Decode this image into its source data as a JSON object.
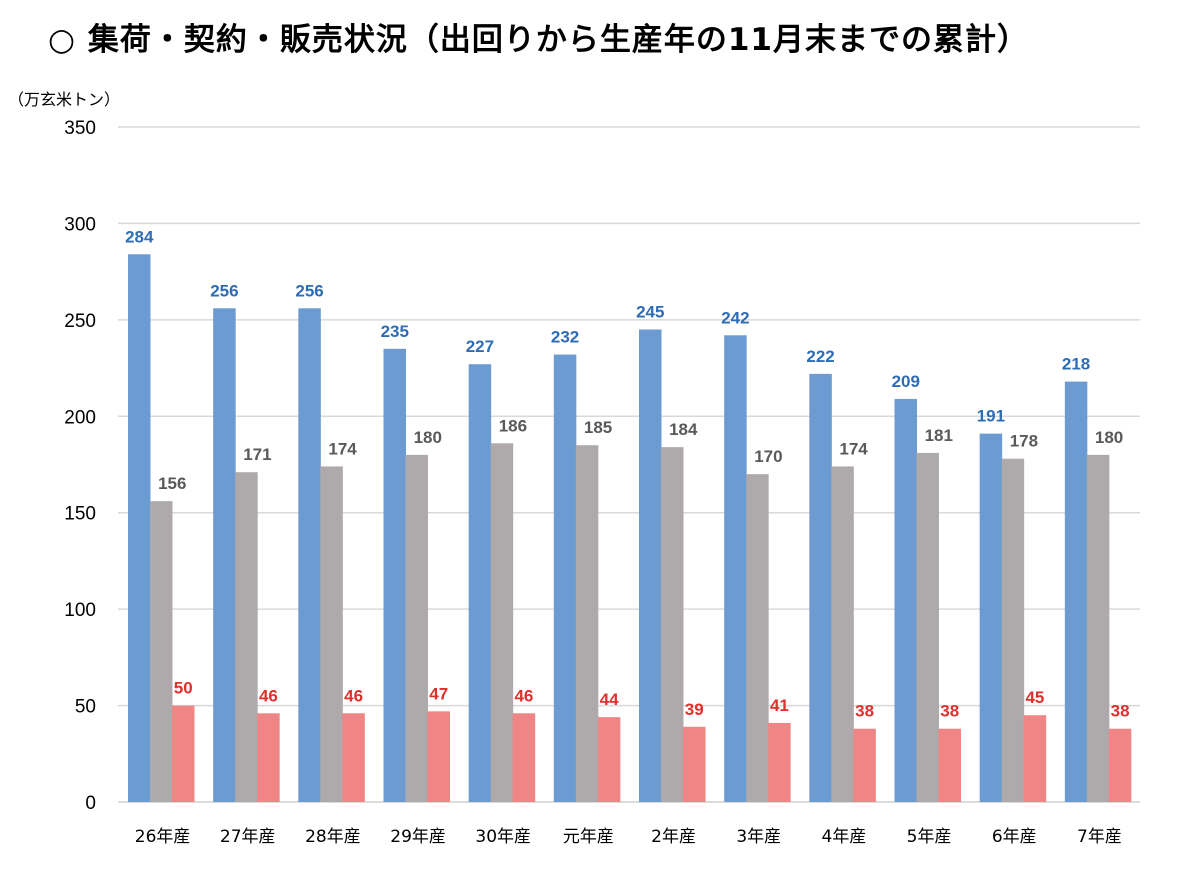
{
  "chart_data": {
    "type": "bar",
    "title": "○ 集荷・契約・販売状況（出回りから生産年の11月末までの累計）",
    "ylabel": "（万玄米トン）",
    "ylim": [
      0,
      350
    ],
    "yticks": [
      0,
      50,
      100,
      150,
      200,
      250,
      300,
      350
    ],
    "grid": true,
    "legend": "none",
    "categories": [
      "26年産",
      "27年産",
      "28年産",
      "29年産",
      "30年産",
      "元年産",
      "2年産",
      "3年産",
      "4年産",
      "5年産",
      "6年産",
      "7年産"
    ],
    "series": [
      {
        "values": [
          284,
          256,
          256,
          235,
          227,
          232,
          245,
          242,
          222,
          209,
          191,
          218
        ],
        "color": "#6b9bd1",
        "label_color": "#2e6db5"
      },
      {
        "values": [
          156,
          171,
          174,
          180,
          186,
          185,
          184,
          170,
          174,
          181,
          178,
          180
        ],
        "color": "#aeaaab",
        "label_color": "#595959"
      },
      {
        "values": [
          50,
          46,
          46,
          47,
          46,
          44,
          39,
          41,
          38,
          38,
          45,
          38
        ],
        "color": "#f08585",
        "label_color": "#e0302c"
      }
    ]
  }
}
